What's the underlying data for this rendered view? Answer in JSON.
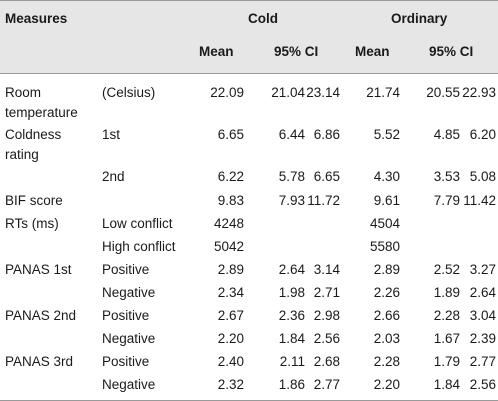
{
  "header": {
    "measures": "Measures",
    "cold": "Cold",
    "ordinary": "Ordinary",
    "mean": "Mean",
    "ci": "95% CI"
  },
  "rows": [
    {
      "label": [
        "Room",
        "temperature"
      ],
      "sub": "(Celsius)",
      "cold": [
        "22.09",
        "21.04",
        "23.14"
      ],
      "ord": [
        "21.74",
        "20.55",
        "22.93"
      ]
    },
    {
      "label": [
        "Coldness",
        "rating"
      ],
      "sub": "1st",
      "cold": [
        "6.65",
        "6.44",
        "6.86"
      ],
      "ord": [
        "5.52",
        "4.85",
        "6.20"
      ]
    },
    {
      "label": [
        ""
      ],
      "sub": "2nd",
      "cold": [
        "6.22",
        "5.78",
        "6.65"
      ],
      "ord": [
        "4.30",
        "3.53",
        "5.08"
      ]
    },
    {
      "label": [
        "BIF score"
      ],
      "sub": "",
      "cold": [
        "9.83",
        "7.93",
        "11.72"
      ],
      "ord": [
        "9.61",
        "7.79",
        "11.42"
      ]
    },
    {
      "label": [
        "RTs (ms)"
      ],
      "sub": "Low conflict",
      "cold": [
        "4248",
        "",
        ""
      ],
      "ord": [
        "4504",
        "",
        ""
      ]
    },
    {
      "label": [
        ""
      ],
      "sub": "High conflict",
      "cold": [
        "5042",
        "",
        ""
      ],
      "ord": [
        "5580",
        "",
        ""
      ]
    },
    {
      "label": [
        "PANAS 1st"
      ],
      "sub": "Positive",
      "cold": [
        "2.89",
        "2.64",
        "3.14"
      ],
      "ord": [
        "2.89",
        "2.52",
        "3.27"
      ]
    },
    {
      "label": [
        ""
      ],
      "sub": "Negative",
      "cold": [
        "2.34",
        "1.98",
        "2.71"
      ],
      "ord": [
        "2.26",
        "1.89",
        "2.64"
      ]
    },
    {
      "label": [
        "PANAS 2nd"
      ],
      "sub": "Positive",
      "cold": [
        "2.67",
        "2.36",
        "2.98"
      ],
      "ord": [
        "2.66",
        "2.28",
        "3.04"
      ]
    },
    {
      "label": [
        ""
      ],
      "sub": "Negative",
      "cold": [
        "2.20",
        "1.84",
        "2.56"
      ],
      "ord": [
        "2.03",
        "1.67",
        "2.39"
      ]
    },
    {
      "label": [
        "PANAS 3rd"
      ],
      "sub": "Positive",
      "cold": [
        "2.40",
        "2.11",
        "2.68"
      ],
      "ord": [
        "2.28",
        "1.79",
        "2.77"
      ]
    },
    {
      "label": [
        ""
      ],
      "sub": "Negative",
      "cold": [
        "2.32",
        "1.86",
        "2.77"
      ],
      "ord": [
        "2.20",
        "1.84",
        "2.56"
      ]
    }
  ]
}
